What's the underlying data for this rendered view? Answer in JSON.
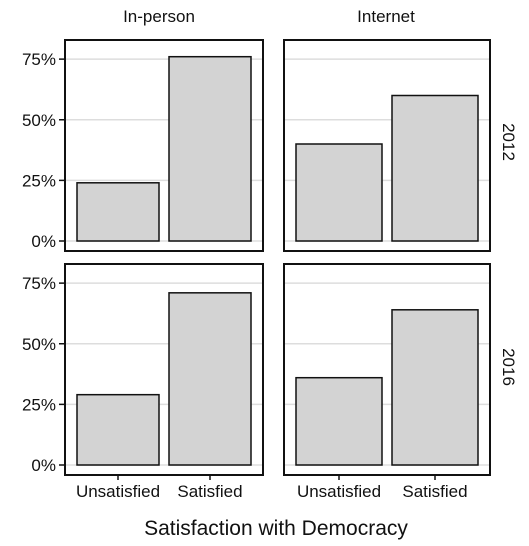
{
  "chart_data": {
    "type": "bar",
    "xlabel": "Satisfaction with Democracy",
    "ylabel": "",
    "ylim": [
      0,
      0.8
    ],
    "yticks": [
      0,
      0.25,
      0.5,
      0.75
    ],
    "ytick_labels": [
      "0%",
      "25%",
      "50%",
      "75%"
    ],
    "categories": [
      "Unsatisfied",
      "Satisfied"
    ],
    "column_facets": [
      "In-person",
      "Internet"
    ],
    "row_facets": [
      "2012",
      "2016"
    ],
    "grid": true,
    "legend": "none",
    "bar_color": "#d3d3d3",
    "panels": [
      {
        "column": "In-person",
        "row": "2012",
        "values": [
          0.24,
          0.76
        ]
      },
      {
        "column": "Internet",
        "row": "2012",
        "values": [
          0.4,
          0.6
        ]
      },
      {
        "column": "In-person",
        "row": "2016",
        "values": [
          0.29,
          0.71
        ]
      },
      {
        "column": "Internet",
        "row": "2016",
        "values": [
          0.36,
          0.64
        ]
      }
    ]
  }
}
